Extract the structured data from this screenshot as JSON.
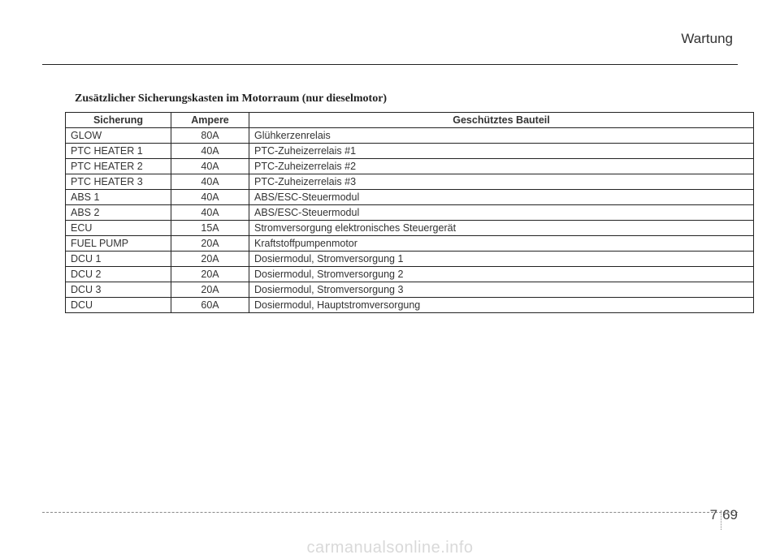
{
  "header": {
    "section": "Wartung"
  },
  "title": "Zusätzlicher Sicherungskasten im Motorraum (nur dieselmotor)",
  "table": {
    "columns": [
      "Sicherung",
      "Ampere",
      "Geschütztes Bauteil"
    ],
    "rows": [
      [
        "GLOW",
        "80A",
        "Glühkerzenrelais"
      ],
      [
        "PTC HEATER 1",
        "40A",
        "PTC-Zuheizerrelais #1"
      ],
      [
        "PTC HEATER 2",
        "40A",
        "PTC-Zuheizerrelais #2"
      ],
      [
        "PTC HEATER 3",
        "40A",
        "PTC-Zuheizerrelais #3"
      ],
      [
        "ABS 1",
        "40A",
        "ABS/ESC-Steuermodul"
      ],
      [
        "ABS 2",
        "40A",
        "ABS/ESC-Steuermodul"
      ],
      [
        "ECU",
        "15A",
        "Stromversorgung elektronisches Steuergerät"
      ],
      [
        "FUEL PUMP",
        "20A",
        "Kraftstoffpumpenmotor"
      ],
      [
        "DCU 1",
        "20A",
        "Dosiermodul, Stromversorgung 1"
      ],
      [
        "DCU 2",
        "20A",
        "Dosiermodul, Stromversorgung 2"
      ],
      [
        "DCU 3",
        "20A",
        "Dosiermodul, Stromversorgung 3"
      ],
      [
        "DCU",
        "60A",
        "Dosiermodul, Hauptstromversorgung"
      ]
    ]
  },
  "footer": {
    "chapter": "7",
    "page": "69"
  },
  "watermark": "carmanualsonline.info"
}
